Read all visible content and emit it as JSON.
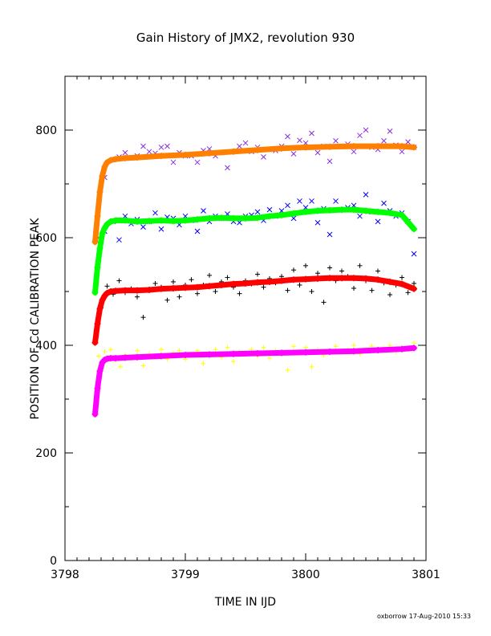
{
  "chart_data": {
    "type": "scatter",
    "title": "Gain History of JMX2, revolution 930",
    "xlabel": "TIME IN IJD",
    "ylabel": "POSITION OF Cd CALIBRATION PEAK",
    "xlim": [
      3798.0,
      3801.0
    ],
    "ylim": [
      0,
      900
    ],
    "x_ticks": [
      3798,
      3799,
      3800,
      3801
    ],
    "y_ticks": [
      0,
      200,
      400,
      600,
      800
    ],
    "x_ticks_minor_step": 0.1,
    "y_ticks_minor_step": 100,
    "grid": false,
    "legend": "none",
    "footer": "oxborrow 17-Aug-2010 15:33",
    "series": [
      {
        "color": "#8a2be2",
        "marker": "x",
        "x": [
          3798.28,
          3798.33,
          3798.4,
          3798.45,
          3798.5,
          3798.55,
          3798.6,
          3798.65,
          3798.7,
          3798.75,
          3798.8,
          3798.85,
          3798.9,
          3798.95,
          3799.0,
          3799.05,
          3799.1,
          3799.15,
          3799.2,
          3799.25,
          3799.3,
          3799.35,
          3799.4,
          3799.45,
          3799.5,
          3799.55,
          3799.6,
          3799.65,
          3799.7,
          3799.75,
          3799.8,
          3799.85,
          3799.9,
          3799.95,
          3800.0,
          3800.05,
          3800.1,
          3800.15,
          3800.2,
          3800.25,
          3800.3,
          3800.35,
          3800.4,
          3800.45,
          3800.5,
          3800.55,
          3800.6,
          3800.65,
          3800.7,
          3800.75,
          3800.8,
          3800.85,
          3800.9
        ],
        "y": [
          600,
          712,
          745,
          750,
          758,
          748,
          752,
          770,
          760,
          757,
          768,
          770,
          740,
          758,
          752,
          752,
          740,
          762,
          765,
          752,
          758,
          730,
          760,
          770,
          776,
          760,
          768,
          750,
          764,
          762,
          770,
          788,
          756,
          781,
          776,
          794,
          758,
          770,
          742,
          780,
          770,
          774,
          760,
          790,
          800,
          768,
          764,
          780,
          798,
          772,
          760,
          778,
          768
        ]
      },
      {
        "color": "#ff8000",
        "marker": "+",
        "band": true,
        "x": [
          3798.25,
          3798.27,
          3798.29,
          3798.31,
          3798.33,
          3798.35,
          3798.38,
          3798.42,
          3798.5,
          3798.6,
          3798.8,
          3799.0,
          3799.2,
          3799.4,
          3799.6,
          3799.8,
          3800.0,
          3800.2,
          3800.4,
          3800.6,
          3800.8,
          3800.9
        ],
        "y": [
          592,
          640,
          685,
          715,
          732,
          740,
          744,
          746,
          748,
          749,
          752,
          754,
          757,
          760,
          763,
          766,
          768,
          769,
          770,
          770,
          770,
          768
        ]
      },
      {
        "color": "#0000ff",
        "marker": "x",
        "x": [
          3798.28,
          3798.33,
          3798.4,
          3798.45,
          3798.5,
          3798.55,
          3798.6,
          3798.65,
          3798.7,
          3798.75,
          3798.8,
          3798.85,
          3798.9,
          3798.95,
          3799.0,
          3799.05,
          3799.1,
          3799.15,
          3799.2,
          3799.25,
          3799.3,
          3799.35,
          3799.4,
          3799.45,
          3799.5,
          3799.55,
          3799.6,
          3799.65,
          3799.7,
          3799.75,
          3799.8,
          3799.85,
          3799.9,
          3799.95,
          3800.0,
          3800.05,
          3800.1,
          3800.15,
          3800.2,
          3800.25,
          3800.3,
          3800.35,
          3800.4,
          3800.45,
          3800.5,
          3800.55,
          3800.6,
          3800.65,
          3800.7,
          3800.75,
          3800.8,
          3800.85,
          3800.9
        ],
        "y": [
          560,
          612,
          630,
          596,
          640,
          626,
          634,
          620,
          630,
          646,
          616,
          638,
          636,
          624,
          640,
          632,
          612,
          650,
          630,
          640,
          636,
          644,
          630,
          628,
          640,
          642,
          648,
          632,
          652,
          640,
          650,
          660,
          636,
          668,
          656,
          668,
          628,
          654,
          606,
          668,
          652,
          656,
          660,
          640,
          680,
          648,
          630,
          664,
          650,
          640,
          646,
          630,
          570
        ]
      },
      {
        "color": "#00ff00",
        "marker": "+",
        "band": true,
        "x": [
          3798.25,
          3798.27,
          3798.29,
          3798.31,
          3798.33,
          3798.35,
          3798.38,
          3798.42,
          3798.5,
          3798.6,
          3798.7,
          3798.8,
          3798.9,
          3799.0,
          3799.1,
          3799.2,
          3799.3,
          3799.4,
          3799.5,
          3799.6,
          3799.7,
          3799.8,
          3799.9,
          3800.0,
          3800.1,
          3800.2,
          3800.3,
          3800.4,
          3800.5,
          3800.6,
          3800.7,
          3800.8,
          3800.9
        ],
        "y": [
          498,
          545,
          580,
          608,
          618,
          625,
          630,
          632,
          632,
          630,
          631,
          632,
          631,
          632,
          634,
          636,
          637,
          636,
          636,
          637,
          640,
          642,
          645,
          648,
          650,
          651,
          652,
          652,
          650,
          648,
          646,
          642,
          616
        ]
      },
      {
        "color": "#000000",
        "marker": "+",
        "x": [
          3798.26,
          3798.3,
          3798.35,
          3798.4,
          3798.45,
          3798.5,
          3798.55,
          3798.6,
          3798.65,
          3798.7,
          3798.75,
          3798.8,
          3798.85,
          3798.9,
          3798.95,
          3799.0,
          3799.05,
          3799.1,
          3799.15,
          3799.2,
          3799.25,
          3799.3,
          3799.35,
          3799.4,
          3799.45,
          3799.5,
          3799.55,
          3799.6,
          3799.65,
          3799.7,
          3799.75,
          3799.8,
          3799.85,
          3799.9,
          3799.95,
          3800.0,
          3800.05,
          3800.1,
          3800.15,
          3800.2,
          3800.25,
          3800.3,
          3800.35,
          3800.4,
          3800.45,
          3800.5,
          3800.55,
          3800.6,
          3800.65,
          3800.7,
          3800.75,
          3800.8,
          3800.85,
          3800.9
        ],
        "y": [
          420,
          470,
          510,
          495,
          520,
          498,
          505,
          490,
          452,
          502,
          515,
          508,
          484,
          518,
          490,
          512,
          522,
          496,
          512,
          530,
          500,
          518,
          526,
          508,
          496,
          520,
          514,
          532,
          508,
          524,
          516,
          528,
          502,
          540,
          512,
          548,
          500,
          534,
          480,
          544,
          520,
          538,
          528,
          506,
          548,
          520,
          502,
          538,
          516,
          494,
          512,
          526,
          498,
          515
        ]
      },
      {
        "color": "#ff0000",
        "marker": "+",
        "band": true,
        "x": [
          3798.25,
          3798.27,
          3798.29,
          3798.31,
          3798.33,
          3798.35,
          3798.38,
          3798.42,
          3798.5,
          3798.6,
          3798.7,
          3798.8,
          3798.9,
          3799.0,
          3799.1,
          3799.2,
          3799.3,
          3799.4,
          3799.5,
          3799.6,
          3799.7,
          3799.8,
          3799.9,
          3800.0,
          3800.1,
          3800.2,
          3800.3,
          3800.4,
          3800.5,
          3800.6,
          3800.7,
          3800.8,
          3800.9
        ],
        "y": [
          405,
          440,
          468,
          484,
          492,
          497,
          500,
          501,
          502,
          502,
          503,
          505,
          506,
          507,
          508,
          510,
          512,
          514,
          515,
          517,
          518,
          520,
          522,
          523,
          524,
          525,
          525,
          525,
          524,
          522,
          518,
          514,
          505
        ]
      },
      {
        "color": "#ffff00",
        "marker": "+",
        "x": [
          3798.28,
          3798.33,
          3798.38,
          3798.42,
          3798.46,
          3798.5,
          3798.55,
          3798.6,
          3798.65,
          3798.7,
          3798.75,
          3798.8,
          3798.85,
          3798.9,
          3798.95,
          3799.0,
          3799.05,
          3799.1,
          3799.15,
          3799.2,
          3799.25,
          3799.3,
          3799.35,
          3799.4,
          3799.45,
          3799.5,
          3799.55,
          3799.6,
          3799.65,
          3799.7,
          3799.75,
          3799.8,
          3799.85,
          3799.9,
          3799.95,
          3800.0,
          3800.05,
          3800.1,
          3800.15,
          3800.2,
          3800.25,
          3800.3,
          3800.35,
          3800.4,
          3800.45,
          3800.5,
          3800.55,
          3800.6,
          3800.65,
          3800.7,
          3800.75,
          3800.8,
          3800.85,
          3800.9
        ],
        "y": [
          380,
          388,
          392,
          372,
          360,
          382,
          376,
          390,
          362,
          384,
          378,
          392,
          374,
          386,
          390,
          374,
          382,
          390,
          366,
          384,
          392,
          378,
          396,
          370,
          388,
          384,
          392,
          380,
          396,
          376,
          390,
          386,
          354,
          398,
          388,
          396,
          360,
          392,
          382,
          386,
          398,
          388,
          392,
          400,
          384,
          392,
          398,
          390,
          394,
          400,
          388,
          396,
          392,
          404
        ]
      },
      {
        "color": "#ff00ff",
        "marker": "+",
        "band": true,
        "x": [
          3798.25,
          3798.27,
          3798.29,
          3798.31,
          3798.33,
          3798.35,
          3798.38,
          3798.42,
          3798.5,
          3798.6,
          3798.8,
          3799.0,
          3799.2,
          3799.4,
          3799.6,
          3799.8,
          3800.0,
          3800.2,
          3800.4,
          3800.6,
          3800.8,
          3800.9
        ],
        "y": [
          272,
          320,
          352,
          368,
          373,
          375,
          376,
          376,
          377,
          378,
          380,
          382,
          383,
          384,
          385,
          386,
          387,
          388,
          389,
          391,
          393,
          395
        ]
      }
    ]
  }
}
